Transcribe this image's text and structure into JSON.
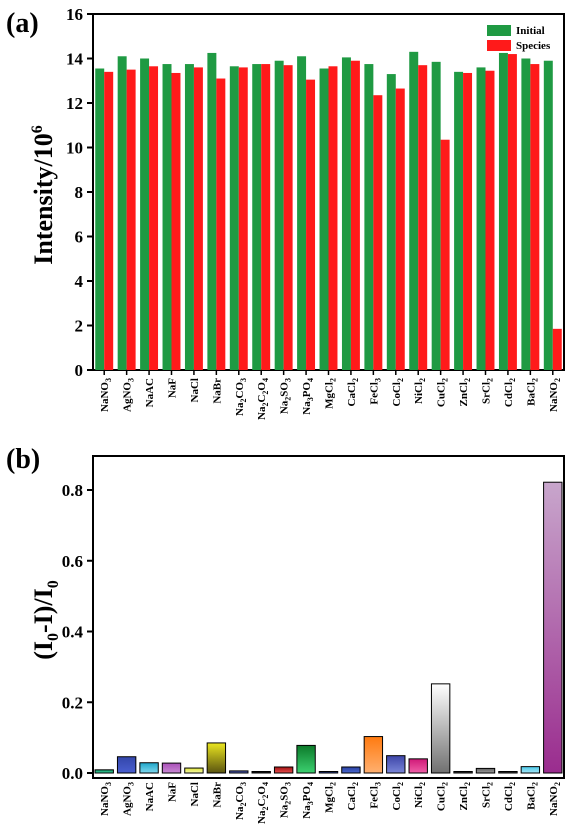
{
  "chart_data": [
    {
      "panel": "(a)",
      "type": "bar",
      "title": "",
      "xlabel": "",
      "ylabel": "Intensity/10",
      "ylabel_sup": "6",
      "ylim": [
        0,
        16
      ],
      "yticks": [
        0,
        2,
        4,
        6,
        8,
        10,
        12,
        14,
        16
      ],
      "grid": false,
      "legend_position": "top-right",
      "categories": [
        "NaNO3",
        "AgNO3",
        "NaAC",
        "NaF",
        "NaCl",
        "NaBr",
        "Na2CO3",
        "Na2C2O4",
        "Na2SO3",
        "Na3PO4",
        "MgCl2",
        "CaCl2",
        "FeCl3",
        "CoCl2",
        "NiCl2",
        "CuCl2",
        "ZnCl2",
        "SrCl2",
        "CdCl2",
        "BaCl2",
        "NaNO2"
      ],
      "series": [
        {
          "name": "Initial",
          "color": "#1f9a43",
          "values": [
            13.55,
            14.1,
            14.0,
            13.75,
            13.75,
            14.25,
            13.65,
            13.75,
            13.9,
            14.1,
            13.55,
            14.05,
            13.75,
            13.3,
            14.3,
            13.85,
            13.4,
            13.6,
            14.25,
            14.0,
            13.9
          ]
        },
        {
          "name": "Species",
          "color": "#ff1a1a",
          "values": [
            13.4,
            13.5,
            13.65,
            13.35,
            13.6,
            13.1,
            13.6,
            13.75,
            13.7,
            13.05,
            13.65,
            13.9,
            12.35,
            12.65,
            13.7,
            10.35,
            13.35,
            13.45,
            14.2,
            13.75,
            1.85
          ]
        }
      ]
    },
    {
      "panel": "(b)",
      "type": "bar",
      "title": "",
      "xlabel": "",
      "ylabel": "(I0-I)/I0",
      "ylim": [
        0,
        0.9
      ],
      "yticks": [
        "0.0",
        "0.2",
        "0.4",
        "0.6",
        "0.8"
      ],
      "grid": false,
      "categories": [
        "NaNO3",
        "AgNO3",
        "NaAC",
        "NaF",
        "NaCl",
        "NaBr",
        "Na2CO3",
        "Na2C2O4",
        "Na2SO3",
        "Na3PO4",
        "MgCl2",
        "CaCl2",
        "FeCl3",
        "CoCl2",
        "NiCl2",
        "CuCl2",
        "ZnCl2",
        "SrCl2",
        "CdCl2",
        "BaCl2",
        "NaNO2"
      ],
      "values": [
        0.009,
        0.046,
        0.029,
        0.028,
        0.014,
        0.085,
        0.006,
        0.001,
        0.017,
        0.078,
        0.003,
        0.017,
        0.103,
        0.049,
        0.04,
        0.252,
        0.002,
        0.013,
        0.004,
        0.018,
        0.822
      ],
      "colors": [
        [
          "#0f8f5f",
          "#3ed2a0"
        ],
        [
          "#3346aa",
          "#4a5fd0"
        ],
        [
          "#1ea5c9",
          "#7fd8ee"
        ],
        [
          "#a94fb8",
          "#c98ad4"
        ],
        [
          "#e0e63a",
          "#f4f6a8"
        ],
        [
          "#ebe620",
          "#5a5410"
        ],
        [
          "#2e3a8c",
          "#6a7ad6"
        ],
        [
          "#000000",
          "#333333"
        ],
        [
          "#a01010",
          "#e85050"
        ],
        [
          "#0c7a2a",
          "#3cd070"
        ],
        [
          "#1b2e70",
          "#3a54b0"
        ],
        [
          "#2a3fa0",
          "#4a6ad0"
        ],
        [
          "#ff7a10",
          "#ffb070"
        ],
        [
          "#3d45a8",
          "#7a86d8"
        ],
        [
          "#d01878",
          "#f060a8"
        ],
        [
          "#ffffff",
          "#707070"
        ],
        [
          "#1a1a1a",
          "#555555"
        ],
        [
          "#606060",
          "#a0a0a0"
        ],
        [
          "#222222",
          "#555555"
        ],
        [
          "#48c7e8",
          "#a8e8f8"
        ],
        [
          "#c8a6cc",
          "#9a2c8e"
        ]
      ]
    }
  ],
  "legend": {
    "initial": "Initial",
    "species": "Species"
  },
  "panels": {
    "a": "(a)",
    "b": "(b)"
  }
}
